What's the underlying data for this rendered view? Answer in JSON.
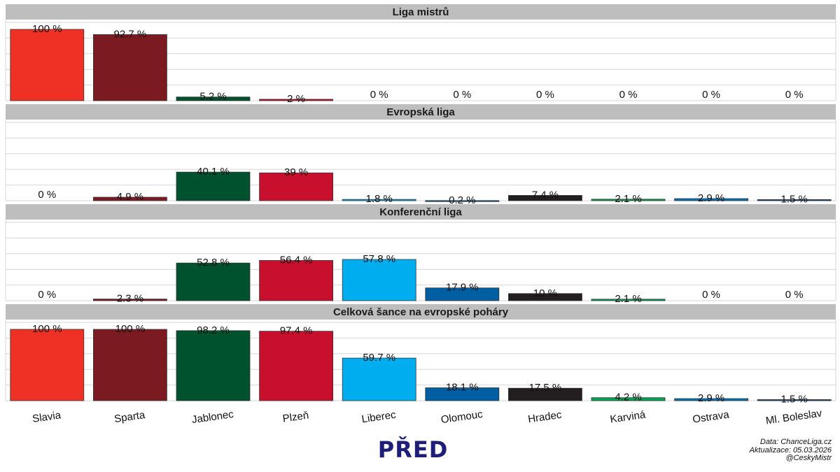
{
  "footer": {
    "title": "PŘED",
    "source": "Data: ChanceLiga.cz",
    "updated": "Aktualizace:  05.03.2026",
    "handle": "@CeskyMistr"
  },
  "chart_data": {
    "type": "bar",
    "categories": [
      "Slavia",
      "Sparta",
      "Jablonec",
      "Plzeň",
      "Liberec",
      "Olomouc",
      "Hradec",
      "Karviná",
      "Ostrava",
      "Ml. Boleslav"
    ],
    "colors": [
      "#ee3124",
      "#7b1a20",
      "#00512e",
      "#c8102e",
      "#00aeef",
      "#005ea2",
      "#231f20",
      "#00a651",
      "#0072bc",
      "#003f8a"
    ],
    "ylim": [
      0,
      100
    ],
    "grid": true,
    "panels": [
      {
        "title": "Liga mistrů",
        "values": [
          100,
          92.7,
          5.2,
          2,
          0,
          0,
          0,
          0,
          0,
          0
        ],
        "labels": [
          "100 %",
          "92.7 %",
          "5.2 %",
          "2 %",
          "0 %",
          "0 %",
          "0 %",
          "0 %",
          "0 %",
          "0 %"
        ]
      },
      {
        "title": "Evropská liga",
        "values": [
          0,
          4.9,
          40.1,
          39,
          1.8,
          0.2,
          7.4,
          2.1,
          2.9,
          1.5
        ],
        "labels": [
          "0 %",
          "4.9 %",
          "40.1 %",
          "39 %",
          "1.8 %",
          "0.2 %",
          "7.4 %",
          "2.1 %",
          "2.9 %",
          "1.5 %"
        ]
      },
      {
        "title": "Konferenční liga",
        "values": [
          0,
          2.3,
          52.8,
          56.4,
          57.8,
          17.9,
          10,
          2.1,
          0,
          0
        ],
        "labels": [
          "0 %",
          "2.3 %",
          "52.8 %",
          "56.4 %",
          "57.8 %",
          "17.9 %",
          "10 %",
          "2.1 %",
          "0 %",
          "0 %"
        ]
      },
      {
        "title": "Celková šance na evropské poháry",
        "values": [
          100,
          100,
          98.2,
          97.4,
          59.7,
          18.1,
          17.5,
          4.2,
          2.9,
          1.5
        ],
        "labels": [
          "100 %",
          "100 %",
          "98.2 %",
          "97.4 %",
          "59.7 %",
          "18.1 %",
          "17.5 %",
          "4.2 %",
          "2.9 %",
          "1.5 %"
        ]
      }
    ]
  }
}
